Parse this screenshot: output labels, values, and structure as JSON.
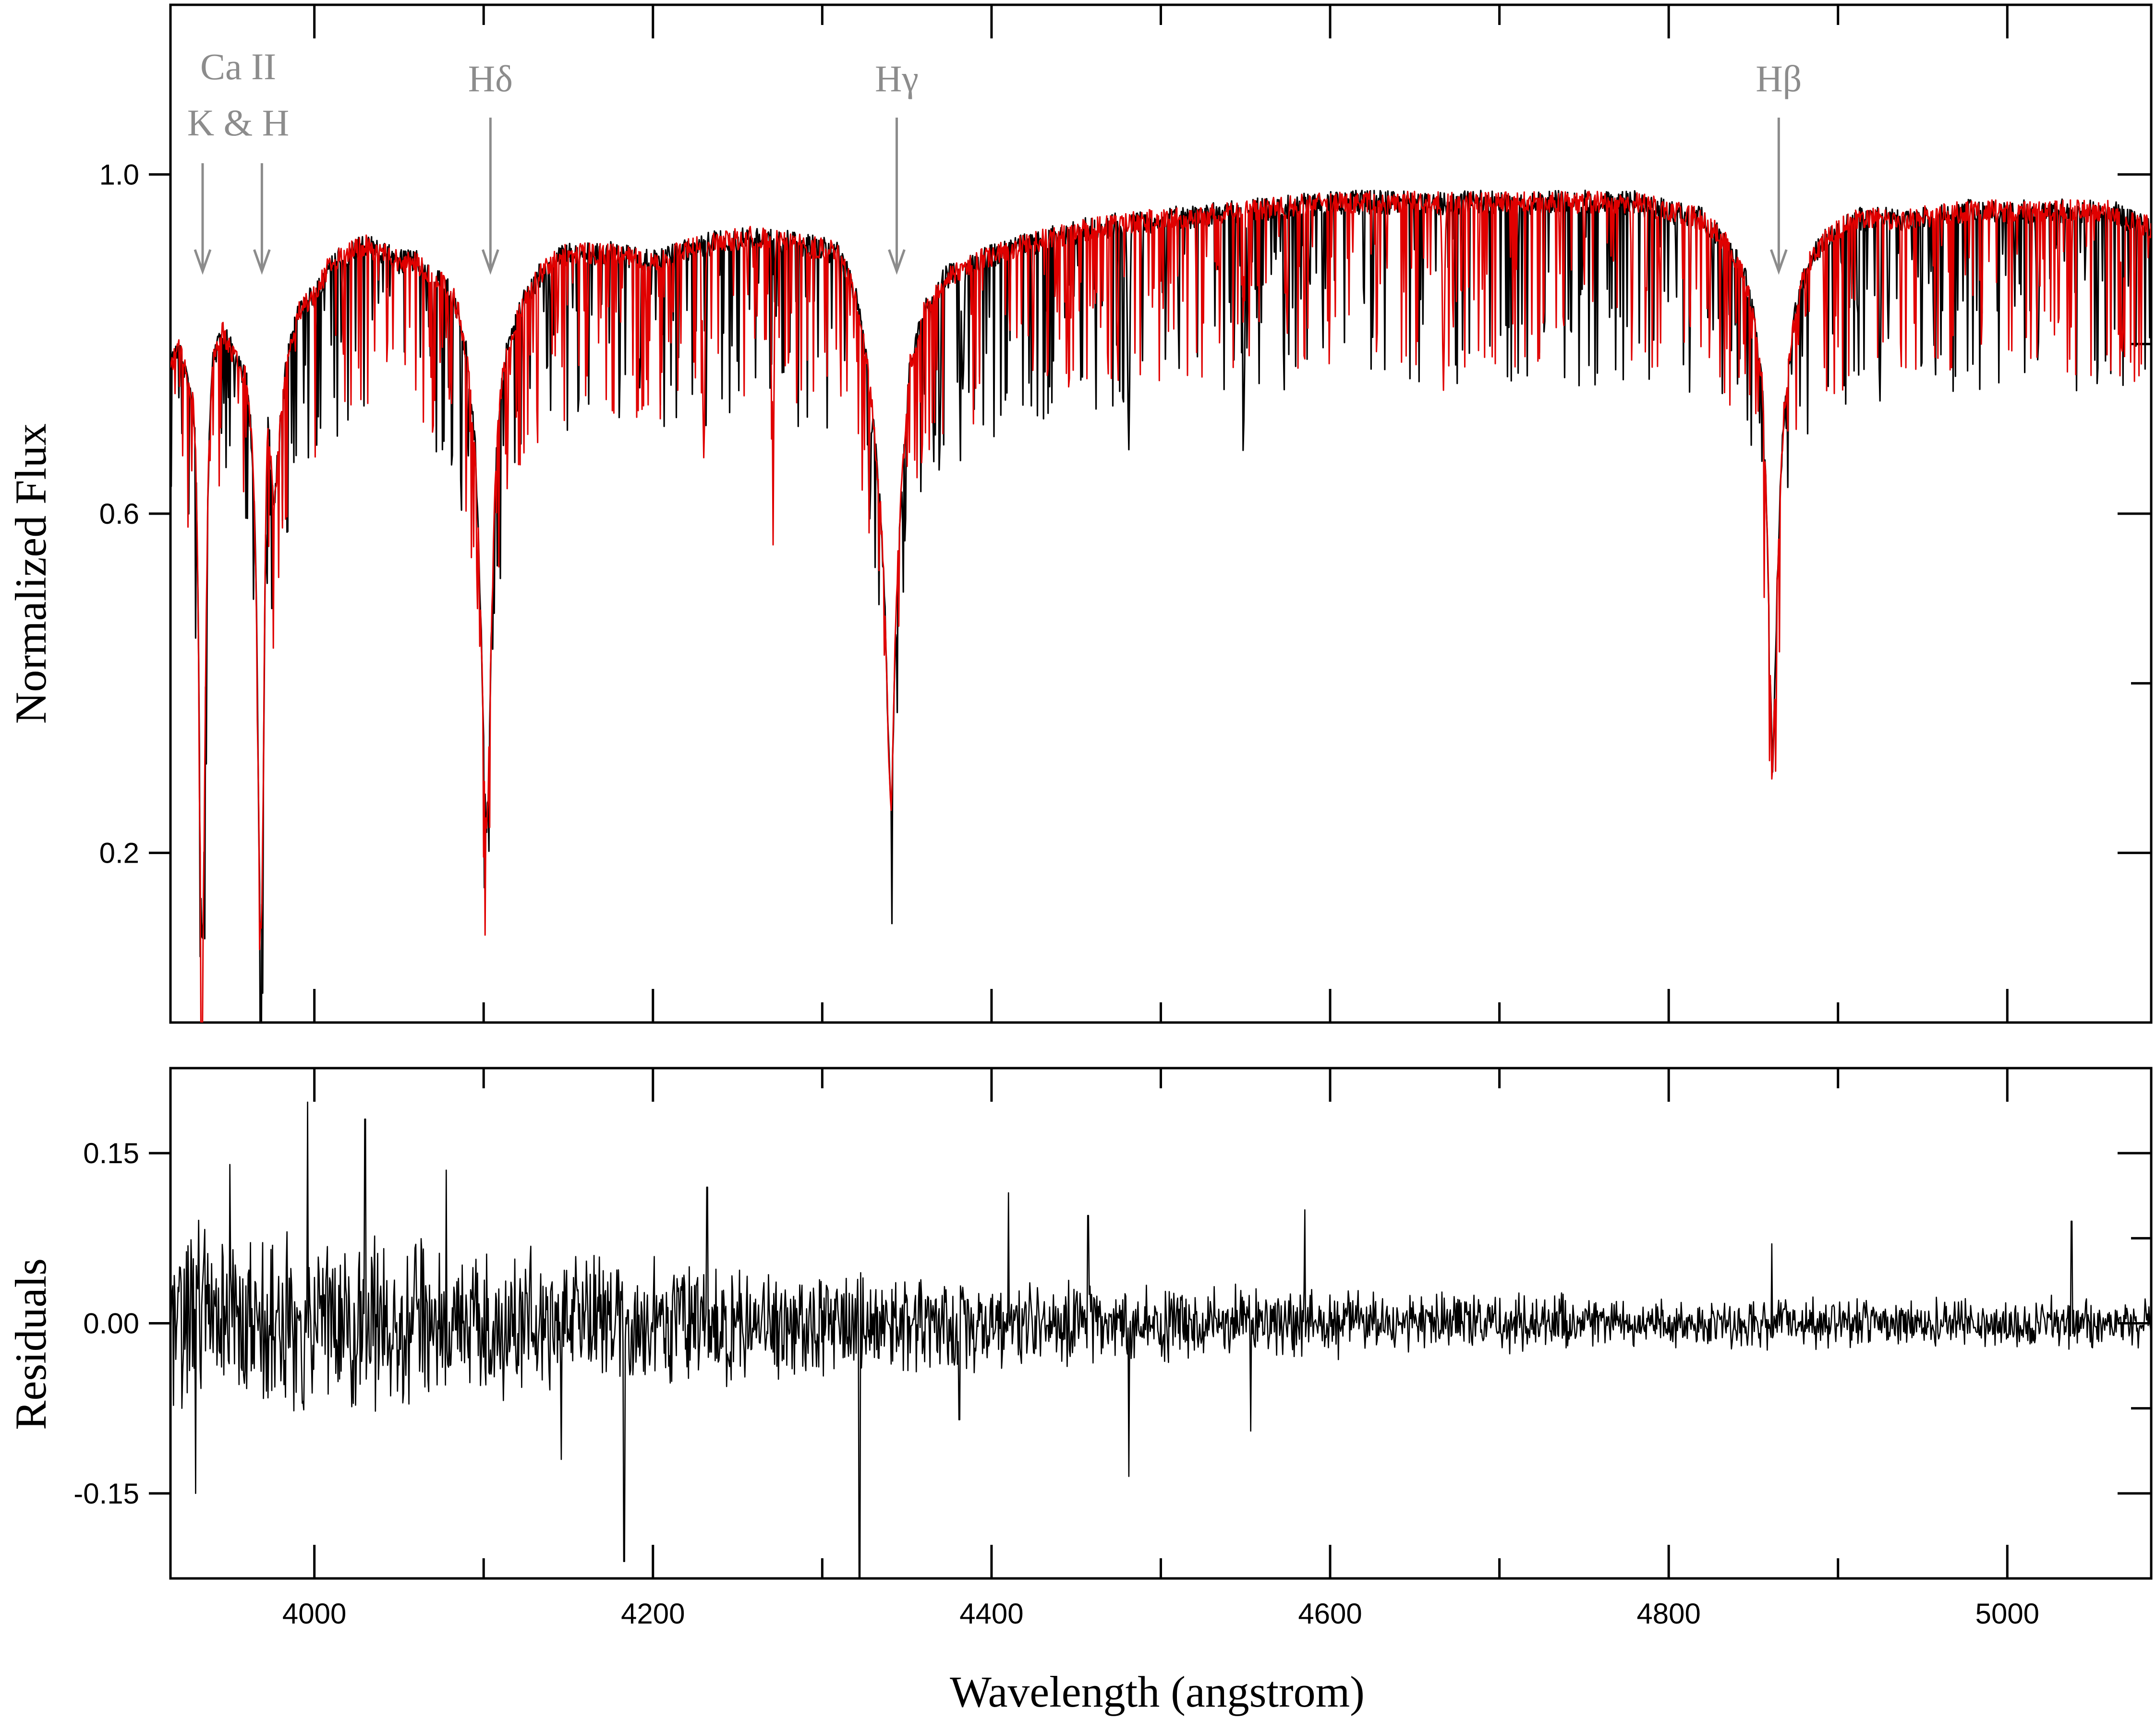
{
  "chart_data": [
    {
      "type": "line",
      "panel": "top",
      "ylabel": "Normalized Flux",
      "xlim": [
        3915,
        5085
      ],
      "ylim": [
        0.0,
        1.2
      ],
      "yticks": [
        0.2,
        0.6,
        1.0
      ],
      "ytick_labels": [
        "0.2",
        "0.6",
        "1.0"
      ],
      "xticks": [
        4000,
        4200,
        4400,
        4600,
        4800,
        5000
      ],
      "grid": false,
      "legend": "none",
      "series": [
        {
          "color": "#000000",
          "x": [
            3915,
            3920,
            3925,
            3930,
            3933.7,
            3937,
            3940,
            3945,
            3950,
            3955,
            3960,
            3965,
            3968.5,
            3972,
            3976,
            3980,
            3985,
            3990,
            4000,
            4010,
            4020,
            4030,
            4040,
            4050,
            4060,
            4070,
            4080,
            4085,
            4090,
            4095,
            4098,
            4101.7,
            4105,
            4108,
            4112,
            4118,
            4125,
            4135,
            4150,
            4175,
            4200,
            4230,
            4260,
            4290,
            4310,
            4320,
            4328,
            4334,
            4338,
            4340.5,
            4343,
            4347,
            4352,
            4360,
            4372,
            4390,
            4420,
            4460,
            4500,
            4550,
            4600,
            4650,
            4700,
            4750,
            4780,
            4800,
            4820,
            4830,
            4838,
            4845,
            4850,
            4855,
            4858,
            4861.3,
            4864.5,
            4868,
            4873,
            4878,
            4885,
            4895,
            4910,
            4940,
            4980,
            5020,
            5060,
            5085
          ],
          "y": [
            0.78,
            0.8,
            0.76,
            0.72,
            0.72,
            0.7,
            0.78,
            0.82,
            0.8,
            0.78,
            0.76,
            0.64,
            0.72,
            0.76,
            0.6,
            0.72,
            0.8,
            0.84,
            0.86,
            0.9,
            0.91,
            0.92,
            0.91,
            0.9,
            0.9,
            0.88,
            0.87,
            0.84,
            0.79,
            0.68,
            0.52,
            0.48,
            0.54,
            0.7,
            0.78,
            0.82,
            0.86,
            0.89,
            0.91,
            0.91,
            0.9,
            0.92,
            0.93,
            0.92,
            0.91,
            0.86,
            0.76,
            0.62,
            0.48,
            0.4,
            0.5,
            0.64,
            0.78,
            0.84,
            0.88,
            0.9,
            0.92,
            0.94,
            0.95,
            0.96,
            0.97,
            0.97,
            0.97,
            0.97,
            0.97,
            0.96,
            0.95,
            0.93,
            0.91,
            0.88,
            0.84,
            0.76,
            0.62,
            0.45,
            0.58,
            0.72,
            0.82,
            0.87,
            0.91,
            0.93,
            0.95,
            0.95,
            0.96,
            0.96,
            0.96,
            0.94
          ],
          "dips": [
            [
              3933.7,
              0.09
            ],
            [
              3968.5,
              0.11
            ],
            [
              4101.7,
              0.23
            ],
            [
              4340.5,
              0.25
            ],
            [
              4861.3,
              0.31
            ],
            [
              4328,
              0.59
            ],
            [
              4383,
              0.74
            ],
            [
              4481,
              0.68
            ],
            [
              4549,
              0.7
            ],
            [
              4957,
              0.79
            ],
            [
              5018,
              0.78
            ]
          ]
        },
        {
          "color": "#e00000",
          "x": [
            3915,
            3920,
            3925,
            3930,
            3933.7,
            3937,
            3940,
            3945,
            3950,
            3955,
            3960,
            3965,
            3968.5,
            3972,
            3976,
            3980,
            3985,
            3990,
            4000,
            4010,
            4020,
            4030,
            4040,
            4050,
            4060,
            4070,
            4080,
            4085,
            4090,
            4095,
            4098,
            4101.7,
            4105,
            4108,
            4112,
            4118,
            4125,
            4135,
            4150,
            4175,
            4200,
            4230,
            4260,
            4290,
            4310,
            4320,
            4328,
            4334,
            4338,
            4340.5,
            4343,
            4347,
            4352,
            4360,
            4372,
            4390,
            4420,
            4460,
            4500,
            4550,
            4600,
            4650,
            4700,
            4750,
            4780,
            4800,
            4820,
            4830,
            4838,
            4845,
            4850,
            4855,
            4858,
            4861.3,
            4864.5,
            4868,
            4873,
            4878,
            4885,
            4895,
            4910,
            4940,
            4980,
            5020,
            5060,
            5085
          ],
          "y": [
            0.78,
            0.8,
            0.76,
            0.72,
            0.72,
            0.7,
            0.78,
            0.82,
            0.8,
            0.78,
            0.76,
            0.64,
            0.72,
            0.76,
            0.6,
            0.72,
            0.8,
            0.84,
            0.86,
            0.9,
            0.91,
            0.92,
            0.91,
            0.9,
            0.9,
            0.88,
            0.87,
            0.84,
            0.79,
            0.68,
            0.52,
            0.48,
            0.54,
            0.7,
            0.78,
            0.82,
            0.86,
            0.89,
            0.91,
            0.91,
            0.9,
            0.92,
            0.93,
            0.92,
            0.91,
            0.86,
            0.76,
            0.62,
            0.48,
            0.4,
            0.5,
            0.64,
            0.78,
            0.84,
            0.88,
            0.9,
            0.92,
            0.94,
            0.95,
            0.96,
            0.97,
            0.97,
            0.97,
            0.97,
            0.97,
            0.96,
            0.95,
            0.93,
            0.91,
            0.88,
            0.84,
            0.76,
            0.62,
            0.45,
            0.58,
            0.72,
            0.82,
            0.87,
            0.91,
            0.93,
            0.95,
            0.95,
            0.96,
            0.96,
            0.96,
            0.94
          ],
          "dips": [
            [
              3933.7,
              0.09
            ],
            [
              3968.5,
              0.11
            ],
            [
              4101.7,
              0.23
            ],
            [
              4340.5,
              0.25
            ],
            [
              4861.3,
              0.3
            ],
            [
              4230,
              0.66
            ],
            [
              4271,
              0.67
            ],
            [
              4667,
              0.76
            ],
            [
              5068,
              0.79
            ]
          ]
        }
      ],
      "annotations": [
        {
          "text": "Ca II",
          "x": 3955,
          "arrow_x": 3955,
          "arrow": false
        },
        {
          "text": "K & H",
          "x": 3955,
          "arrow": false
        },
        {
          "text": "",
          "x": 3934,
          "arrow": true
        },
        {
          "text": "",
          "x": 3969,
          "arrow": true
        },
        {
          "text": "Hδ",
          "x": 4104,
          "arrow": true
        },
        {
          "text": "Hγ",
          "x": 4344,
          "arrow": true
        },
        {
          "text": "Hβ",
          "x": 4865,
          "arrow": true
        }
      ]
    },
    {
      "type": "line",
      "panel": "bottom",
      "xlabel": "Wavelength (angstrom)",
      "ylabel": "Residuals",
      "xlim": [
        3915,
        5085
      ],
      "ylim": [
        -0.225,
        0.225
      ],
      "yticks": [
        -0.15,
        0.0,
        0.15
      ],
      "ytick_labels": [
        "-0.15",
        "0.00",
        "0.15"
      ],
      "xticks": [
        4000,
        4200,
        4400,
        4600,
        4800,
        5000
      ],
      "xtick_labels": [
        "4000",
        "4200",
        "4400",
        "4600",
        "4800",
        "5000"
      ],
      "grid": false,
      "legend": "none",
      "series": [
        {
          "color": "#000000",
          "envelope": {
            "x": [
              3915,
              4000,
              4100,
              4200,
              4300,
              4400,
              4500,
              4600,
              4700,
              4800,
              4900,
              5000,
              5085
            ],
            "amplitude": [
              0.075,
              0.07,
              0.06,
              0.05,
              0.042,
              0.035,
              0.03,
              0.026,
              0.022,
              0.02,
              0.02,
              0.02,
              0.02
            ]
          },
          "spikes": [
            [
              3996,
              0.195
            ],
            [
              4030,
              0.18
            ],
            [
              4078,
              0.135
            ],
            [
              4232,
              0.12
            ],
            [
              4322,
              -0.245
            ],
            [
              4183,
              -0.21
            ],
            [
              4381,
              -0.085
            ],
            [
              4481,
              -0.135
            ],
            [
              4553,
              -0.095
            ],
            [
              4861,
              0.07
            ],
            [
              5038,
              0.09
            ],
            [
              4585,
              0.1
            ],
            [
              4410,
              0.115
            ],
            [
              4457,
              0.095
            ],
            [
              3950,
              0.14
            ],
            [
              3930,
              -0.15
            ],
            [
              4146,
              -0.12
            ]
          ]
        }
      ]
    }
  ]
}
